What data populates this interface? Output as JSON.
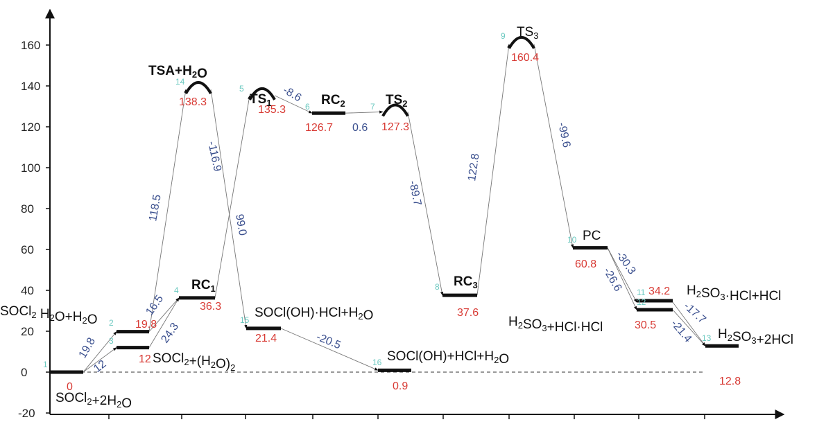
{
  "chart_data": {
    "type": "energy-profile",
    "title": "",
    "xlabel": "",
    "ylabel": "",
    "ylim": [
      -20,
      170
    ],
    "yticks": [
      -20,
      0,
      20,
      40,
      60,
      80,
      100,
      120,
      140,
      160
    ],
    "grid": false,
    "baseline": 0,
    "colors": {
      "value": "#d83a34",
      "delta": "#3a4f8e",
      "step": "#6cc9c0",
      "axis": "#111111"
    },
    "states": [
      {
        "id": 1,
        "name": "SOCl2+2H2O",
        "energy": 0,
        "value_label": "0",
        "kind": "minimum"
      },
      {
        "id": 2,
        "name": "SOCl2 H2O+H2O",
        "energy": 19.8,
        "value_label": "19.8",
        "kind": "minimum"
      },
      {
        "id": 3,
        "name": "SOCl2+(H2O)2",
        "energy": 12,
        "value_label": "12",
        "kind": "minimum"
      },
      {
        "id": 4,
        "name": "RC1",
        "energy": 36.3,
        "value_label": "36.3",
        "kind": "minimum"
      },
      {
        "id": 5,
        "name": "TS1",
        "energy": 135.3,
        "value_label": "135.3",
        "kind": "ts"
      },
      {
        "id": 6,
        "name": "RC2",
        "energy": 126.7,
        "value_label": "126.7",
        "kind": "minimum"
      },
      {
        "id": 7,
        "name": "TS2",
        "energy": 127.3,
        "value_label": "127.3",
        "kind": "ts"
      },
      {
        "id": 8,
        "name": "RC3",
        "energy": 37.6,
        "value_label": "37.6",
        "kind": "minimum"
      },
      {
        "id": 9,
        "name": "TS3",
        "energy": 160.4,
        "value_label": "160.4",
        "kind": "ts"
      },
      {
        "id": 10,
        "name": "PC",
        "energy": 60.8,
        "value_label": "60.8",
        "kind": "minimum"
      },
      {
        "id": 11,
        "name": "H2SO3·HCl+HCl",
        "energy": 34.2,
        "value_label": "34.2",
        "kind": "minimum"
      },
      {
        "id": 12,
        "name": "H2SO3+HCl·HCl",
        "energy": 30.5,
        "value_label": "30.5",
        "kind": "minimum"
      },
      {
        "id": 13,
        "name": "H2SO3+2HCl",
        "energy": 12.8,
        "value_label": "12.8",
        "kind": "minimum"
      },
      {
        "id": 14,
        "name": "TSA+H2O",
        "energy": 138.3,
        "value_label": "138.3",
        "kind": "ts"
      },
      {
        "id": 15,
        "name": "SOCl(OH)·HCl+H2O",
        "energy": 21.4,
        "value_label": "21.4",
        "kind": "minimum"
      },
      {
        "id": 16,
        "name": "SOCl(OH)+HCl+H2O",
        "energy": 0.9,
        "value_label": "0.9",
        "kind": "minimum"
      }
    ],
    "transitions": [
      {
        "from": 1,
        "to": 2,
        "delta": "19.8"
      },
      {
        "from": 1,
        "to": 3,
        "delta": "12"
      },
      {
        "from": 2,
        "to": 4,
        "delta": "16.5"
      },
      {
        "from": 3,
        "to": 4,
        "delta": "24.3"
      },
      {
        "from": 2,
        "to": 14,
        "delta": "118.5"
      },
      {
        "from": 14,
        "to": 15,
        "delta": "-116.9"
      },
      {
        "from": 4,
        "to": 5,
        "delta": "99.0"
      },
      {
        "from": 5,
        "to": 6,
        "delta": "-8.6"
      },
      {
        "from": 6,
        "to": 7,
        "delta": "0.6"
      },
      {
        "from": 7,
        "to": 8,
        "delta": "-89.7"
      },
      {
        "from": 8,
        "to": 9,
        "delta": "122.8"
      },
      {
        "from": 9,
        "to": 10,
        "delta": "-99.6"
      },
      {
        "from": 10,
        "to": 11,
        "delta": "-26.6"
      },
      {
        "from": 10,
        "to": 12,
        "delta": "-30.3"
      },
      {
        "from": 11,
        "to": 13,
        "delta": "-21.4"
      },
      {
        "from": 12,
        "to": 13,
        "delta": "-17.7"
      },
      {
        "from": 15,
        "to": 16,
        "delta": "-20.5"
      }
    ]
  }
}
